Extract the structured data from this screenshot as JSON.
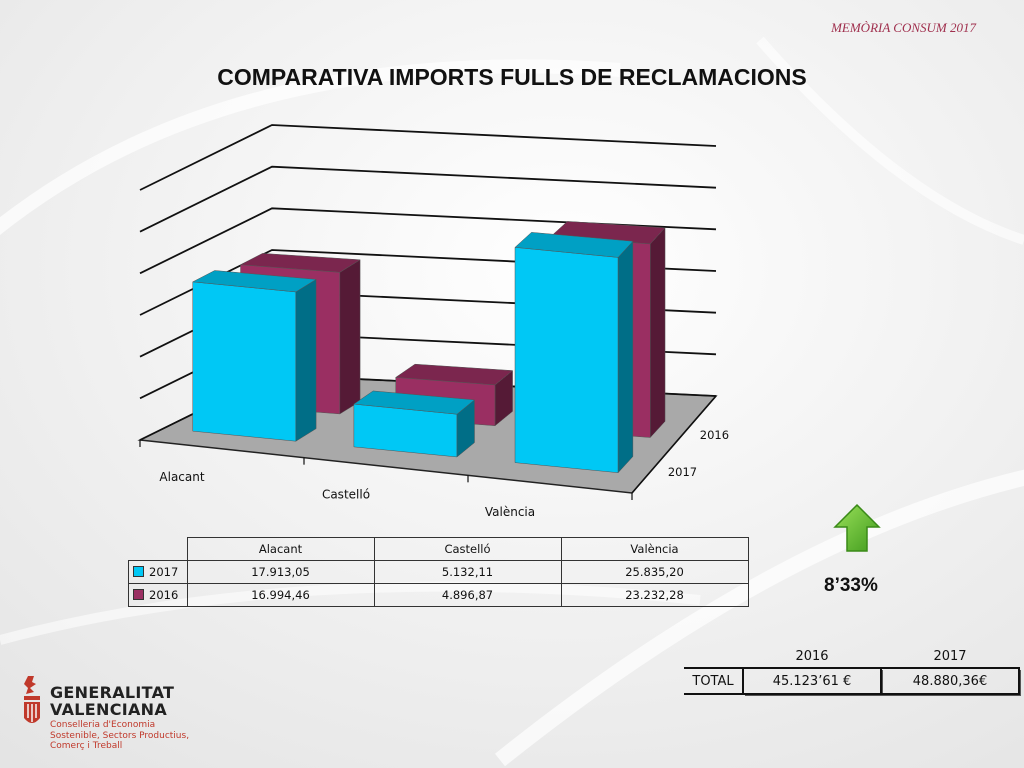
{
  "header": {
    "tag": "MEMÒRIA CONSUM 2017"
  },
  "title": "COMPARATIVA IMPORTS FULLS DE RECLAMACIONS",
  "chart_data": {
    "type": "bar",
    "categories": [
      "Alacant",
      "Castelló",
      "València"
    ],
    "series": [
      {
        "name": "2017",
        "values": [
          17913.05,
          5132.11,
          25835.2
        ],
        "color": "#00c8f5"
      },
      {
        "name": "2016",
        "values": [
          16994.46,
          4896.87,
          23232.28
        ],
        "color": "#9a2f62"
      }
    ],
    "grid": true,
    "legend": "table-below",
    "data_table": {
      "headers": [
        "Alacant",
        "Castelló",
        "València"
      ],
      "rows": [
        {
          "label": "2017",
          "values": [
            "17.913,05",
            "5.132,11",
            "25.835,20"
          ]
        },
        {
          "label": "2016",
          "values": [
            "16.994,46",
            "4.896,87",
            "23.232,28"
          ]
        }
      ]
    }
  },
  "change": {
    "value": "8’33%",
    "direction": "up",
    "icon": "up-arrow-icon",
    "color": "#5cb82a"
  },
  "totals": {
    "headers": [
      "2016",
      "2017"
    ],
    "row_label": "TOTAL",
    "values": [
      "45.123’61 €",
      "48.880,36€"
    ]
  },
  "footer": {
    "org_line1": "GENERALITAT",
    "org_line2": "VALENCIANA",
    "dept_line1": "Conselleria d'Economia",
    "dept_line2": "Sostenible, Sectors Productius,",
    "dept_line3": "Comerç i Treball"
  }
}
